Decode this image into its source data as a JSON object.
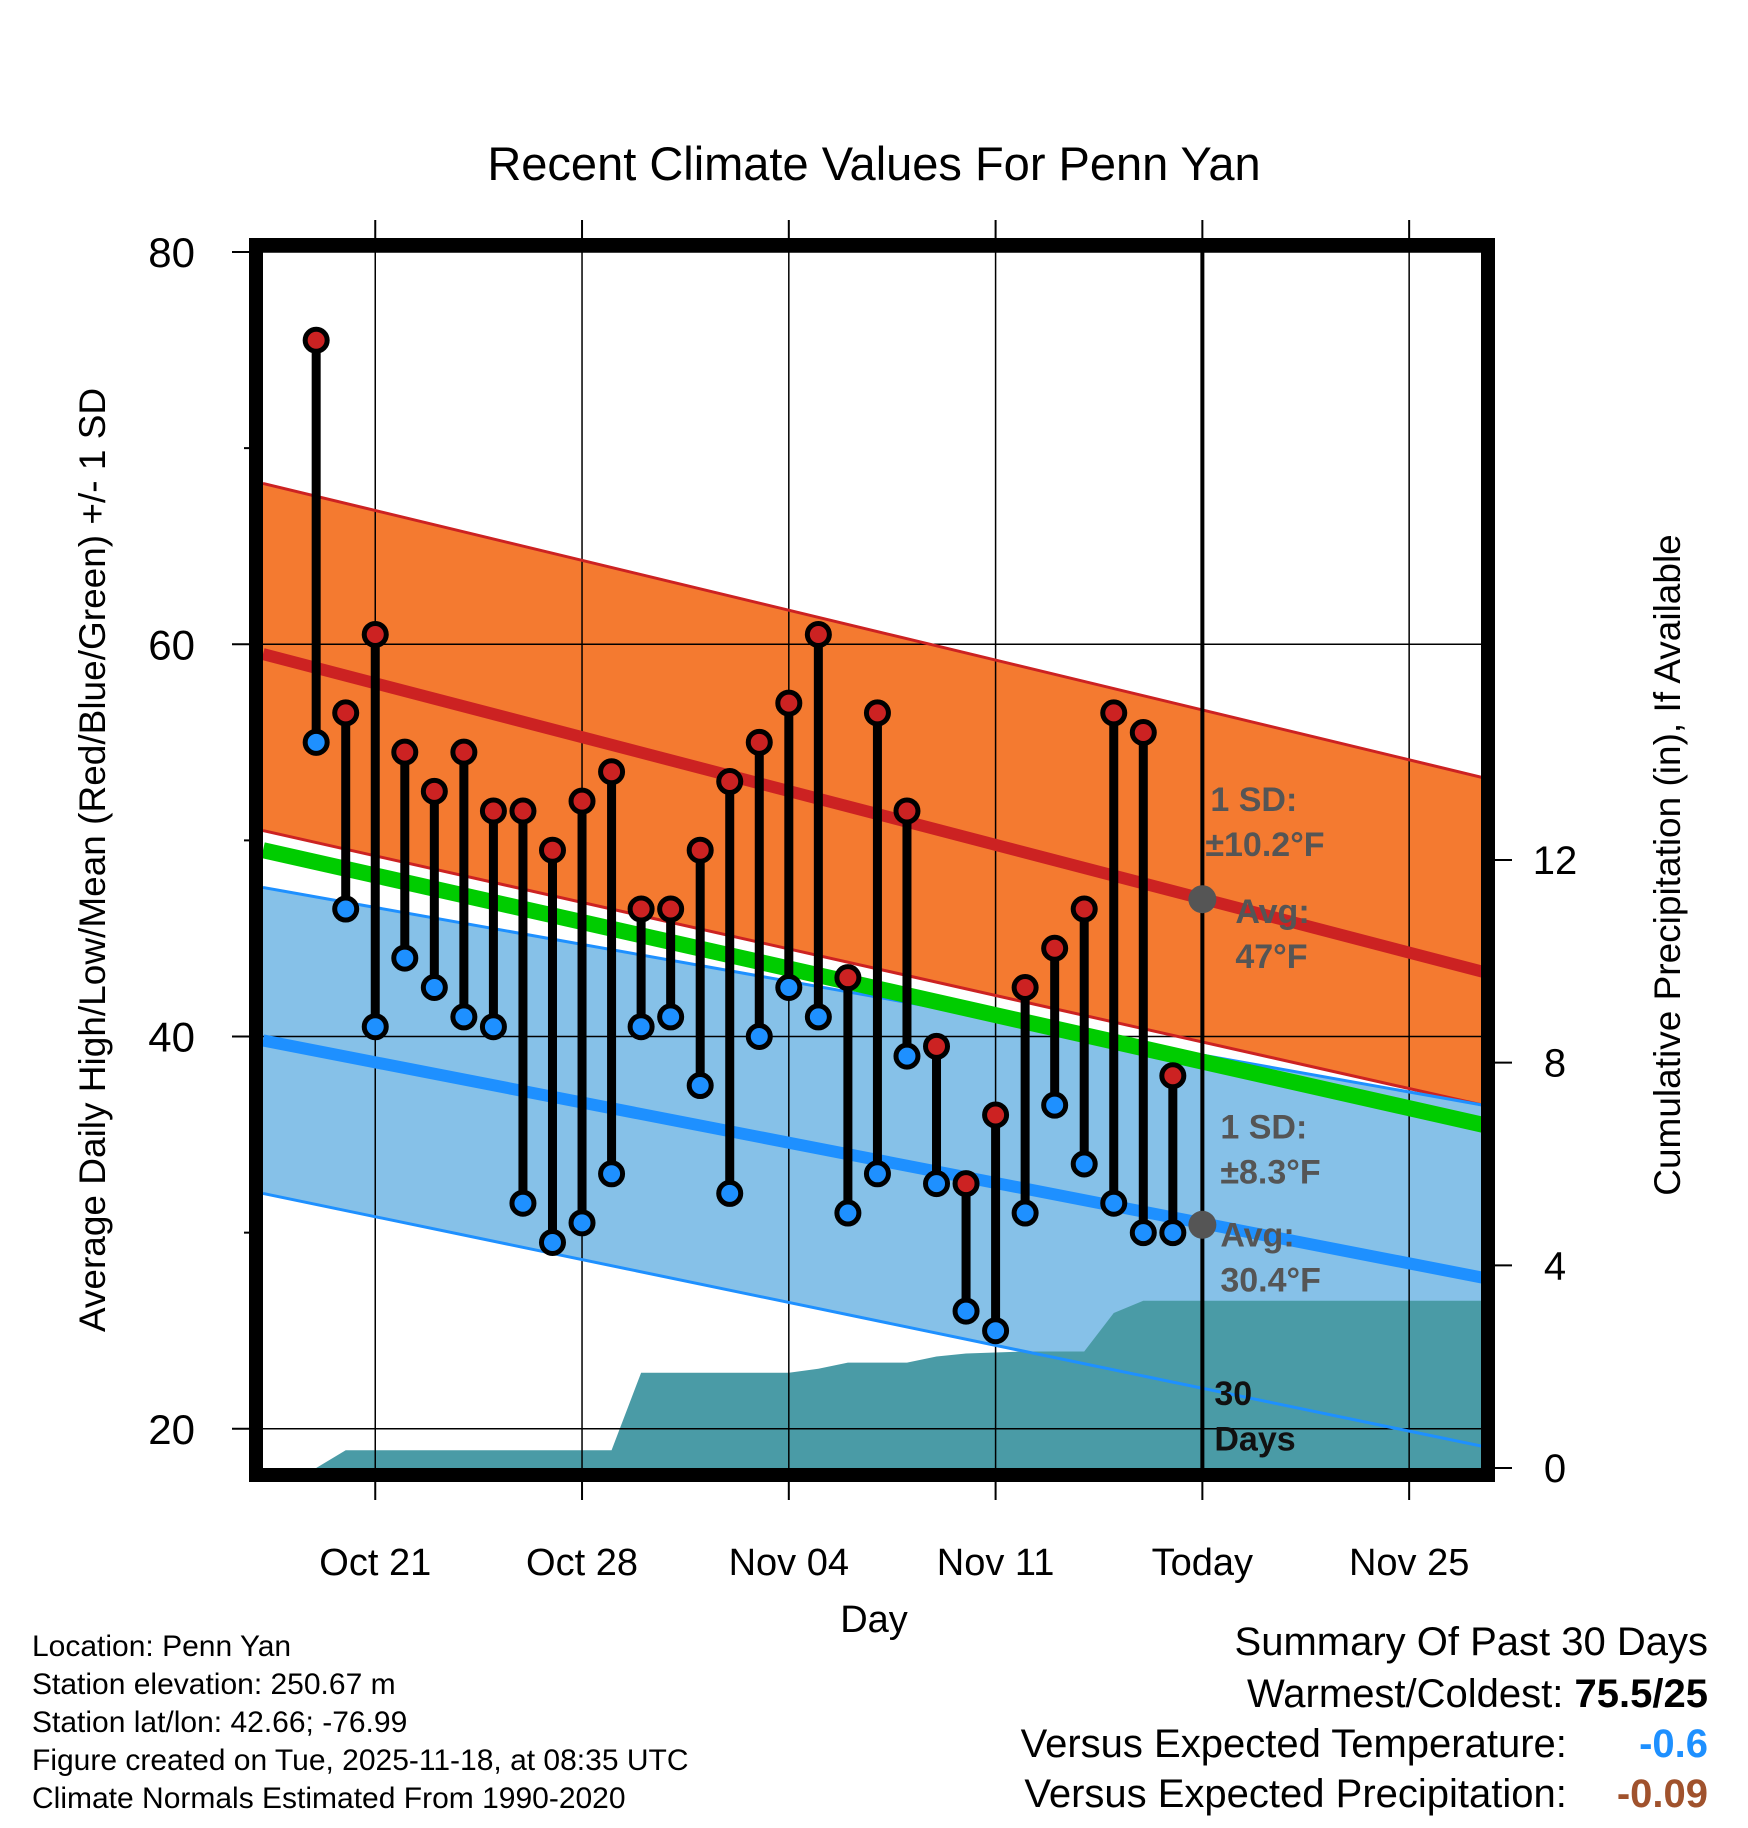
{
  "chart_data": {
    "type": "line",
    "title": "Recent Climate Values For Penn Yan",
    "xlabel": "Day",
    "ylabel": "Average Daily High/Low/Mean (Red/Blue/Green) +/- 1 SD",
    "y2label": "Cumulative Precipitation (in), If Available",
    "ylim": [
      18,
      80
    ],
    "y_ticks": [
      20,
      40,
      60,
      80
    ],
    "y2lim": [
      0,
      24
    ],
    "y2_ticks": [
      0,
      4,
      8,
      12
    ],
    "x_range_days": [
      -31.8,
      9.5
    ],
    "x_ticks": [
      {
        "day": -28,
        "label": "Oct 21"
      },
      {
        "day": -21,
        "label": "Oct 28"
      },
      {
        "day": -14,
        "label": "Nov 04"
      },
      {
        "day": -7,
        "label": "Nov 11"
      },
      {
        "day": 0,
        "label": "Today"
      },
      {
        "day": 7,
        "label": "Nov 25"
      }
    ],
    "today_day": 0,
    "normals": {
      "days": [
        -31.8,
        9.5
      ],
      "high_mean": [
        59.5,
        43.3
      ],
      "high_sd_upper": [
        68.2,
        53.2
      ],
      "high_sd_lower": [
        50.5,
        36.5
      ],
      "low_mean": [
        39.8,
        27.7
      ],
      "low_sd_upper": [
        47.6,
        36.5
      ],
      "low_sd_lower": [
        32.0,
        19.1
      ],
      "mean_temp": [
        49.5,
        35.5
      ]
    },
    "series": [
      {
        "name": "Daily High",
        "days": [
          -30,
          -29,
          -28,
          -27,
          -26,
          -25,
          -24,
          -23,
          -22,
          -21,
          -20,
          -19,
          -18,
          -17,
          -16,
          -15,
          -14,
          -13,
          -12,
          -11,
          -10,
          -9,
          -8,
          -7,
          -6,
          -5,
          -4,
          -3,
          -2,
          -1
        ],
        "values": [
          75.5,
          56.5,
          60.5,
          54.5,
          52.5,
          54.5,
          51.5,
          51.5,
          49.5,
          52.0,
          53.5,
          46.5,
          46.5,
          49.5,
          53.0,
          55.0,
          57.0,
          60.5,
          43.0,
          56.5,
          51.5,
          39.5,
          32.5,
          36.0,
          42.5,
          44.5,
          46.5,
          56.5,
          55.5,
          38.0
        ]
      },
      {
        "name": "Daily Low",
        "days": [
          -30,
          -29,
          -28,
          -27,
          -26,
          -25,
          -24,
          -23,
          -22,
          -21,
          -20,
          -19,
          -18,
          -17,
          -16,
          -15,
          -14,
          -13,
          -12,
          -11,
          -10,
          -9,
          -8,
          -7,
          -6,
          -5,
          -4,
          -3,
          -2,
          -1
        ],
        "values": [
          55.0,
          46.5,
          40.5,
          44.0,
          42.5,
          41.0,
          40.5,
          31.5,
          29.5,
          30.5,
          33.0,
          40.5,
          41.0,
          37.5,
          32.0,
          40.0,
          42.5,
          41.0,
          31.0,
          33.0,
          39.0,
          32.5,
          26.0,
          25.0,
          31.0,
          36.5,
          33.5,
          31.5,
          30.0,
          30.0
        ]
      }
    ],
    "precipitation": {
      "name": "Cumulative Precipitation",
      "days": [
        -32,
        -30,
        -29,
        -28,
        -21,
        -20,
        -19,
        -14,
        -13,
        -12,
        -10,
        -9,
        -8,
        -6,
        -4,
        -3,
        -2,
        -1,
        9.5
      ],
      "values": [
        0,
        0,
        0.35,
        0.35,
        0.35,
        0.35,
        1.88,
        1.88,
        1.96,
        2.08,
        2.08,
        2.2,
        2.26,
        2.3,
        2.3,
        3.06,
        3.3,
        3.3,
        3.3
      ]
    },
    "annotations": {
      "high_sd": "1 SD:",
      "high_sd_value": "±10.2°F",
      "high_avg": "Avg:",
      "high_avg_value": "47°F",
      "high_avg_point": 47,
      "low_sd": "1 SD:",
      "low_sd_value": "±8.3°F",
      "low_avg": "Avg:",
      "low_avg_value": "30.4°F",
      "low_avg_point": 30.4,
      "period_days": "30",
      "period_label": "Days"
    },
    "colors": {
      "high_band": "#f47a30",
      "high_line": "#cc2222",
      "low_band": "#86c1e8",
      "low_line": "#1e90ff",
      "mean_line": "#00cc00",
      "overlap": "#991111",
      "precip": "#4a9ba6",
      "annotation": "#555555",
      "high_marker": "#cc2222",
      "low_marker": "#1e90ff"
    }
  },
  "info": {
    "location": "Location: Penn Yan",
    "elevation": "Station elevation: 250.67 m",
    "latlon": "Station lat/lon: 42.66; -76.99",
    "created": "Figure created on Tue, 2025-11-18, at 08:35 UTC",
    "normals": "Climate Normals Estimated From 1990-2020"
  },
  "summary": {
    "title": "Summary Of Past 30 Days",
    "warmest_label": "Warmest/Coldest:",
    "warmest_value": "75.5/25",
    "temp_label": "Versus Expected Temperature:",
    "temp_value": "-0.6",
    "temp_color": "#1e90ff",
    "precip_label": "Versus Expected Precipitation:",
    "precip_value": "-0.09",
    "precip_color": "#a0522d"
  }
}
